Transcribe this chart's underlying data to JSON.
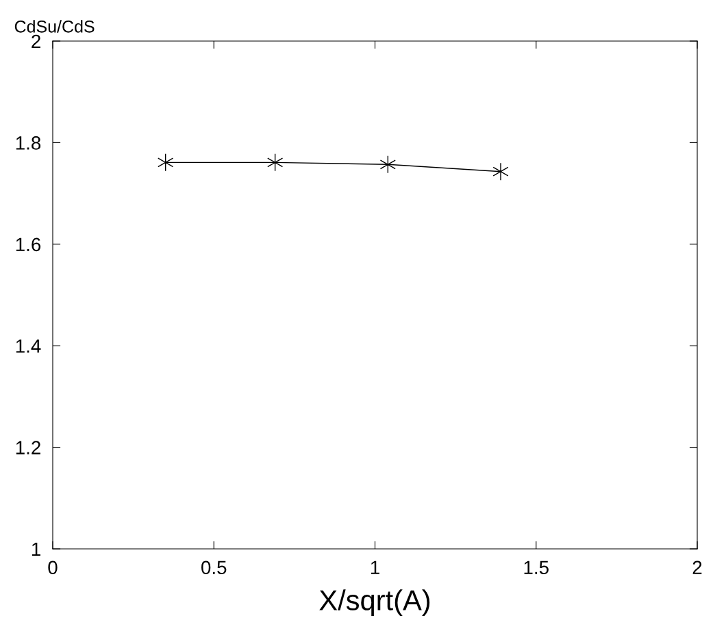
{
  "chart_data": {
    "type": "line",
    "xlabel": "X/sqrt(A)",
    "ylabel": "CdSu/CdS",
    "x": [
      0.35,
      0.69,
      1.04,
      1.39
    ],
    "series": [
      {
        "color": "#000000",
        "values": [
          1.761,
          1.761,
          1.757,
          1.743
        ]
      }
    ],
    "xlim": [
      0,
      2
    ],
    "ylim": [
      1,
      2
    ],
    "xticks": [
      0,
      0.5,
      1,
      1.5,
      2
    ],
    "yticks": [
      1,
      1.2,
      1.4,
      1.6,
      1.8,
      2
    ],
    "marker": "cross",
    "line_style": "solid",
    "grid": false,
    "legend": false
  }
}
